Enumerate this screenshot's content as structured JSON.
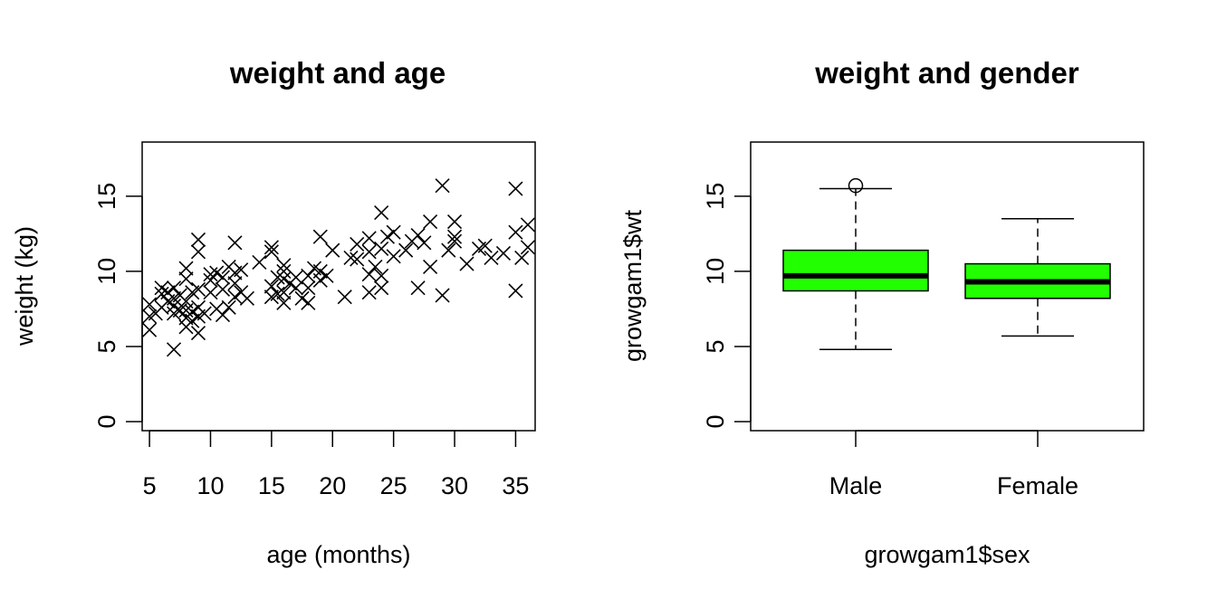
{
  "chart_data": [
    {
      "type": "scatter",
      "title": "weight and age",
      "xlabel": "age (months)",
      "ylabel": "weight (kg)",
      "xlim": [
        4.4,
        36.6
      ],
      "ylim": [
        -0.6,
        18.6
      ],
      "xticks": [
        "5",
        "10",
        "15",
        "20",
        "25",
        "30",
        "35"
      ],
      "yticks": [
        "0",
        "5",
        "10",
        "15"
      ],
      "marker": "x",
      "grid": false,
      "points": [
        [
          5,
          6.1
        ],
        [
          5,
          7.0
        ],
        [
          5,
          7.8
        ],
        [
          5.5,
          7.2
        ],
        [
          6,
          8.5
        ],
        [
          6,
          8.9
        ],
        [
          6,
          7.6
        ],
        [
          6.5,
          8.0
        ],
        [
          6.5,
          8.6
        ],
        [
          7,
          4.8
        ],
        [
          7,
          7.2
        ],
        [
          7,
          7.7
        ],
        [
          7,
          8.2
        ],
        [
          7,
          8.9
        ],
        [
          7.5,
          7.4
        ],
        [
          7.5,
          8.4
        ],
        [
          8,
          6.3
        ],
        [
          8,
          6.9
        ],
        [
          8,
          7.4
        ],
        [
          8,
          8.0
        ],
        [
          8,
          9.5
        ],
        [
          8,
          10.2
        ],
        [
          8.5,
          6.7
        ],
        [
          8.5,
          7.3
        ],
        [
          8.5,
          8.6
        ],
        [
          9,
          5.9
        ],
        [
          9,
          7.0
        ],
        [
          9,
          7.6
        ],
        [
          9,
          8.8
        ],
        [
          9,
          11.3
        ],
        [
          9,
          12.1
        ],
        [
          9.5,
          7.2
        ],
        [
          10,
          8.6
        ],
        [
          10,
          9.4
        ],
        [
          10,
          9.8
        ],
        [
          10.5,
          7.5
        ],
        [
          10.5,
          9.9
        ],
        [
          11,
          7.1
        ],
        [
          11,
          8.8
        ],
        [
          11,
          9.6
        ],
        [
          11.5,
          7.6
        ],
        [
          11.5,
          10.3
        ],
        [
          12,
          8.3
        ],
        [
          12,
          9.2
        ],
        [
          12,
          9.9
        ],
        [
          12,
          11.9
        ],
        [
          12.5,
          8.6
        ],
        [
          12.5,
          10.1
        ],
        [
          13,
          8.2
        ],
        [
          14,
          10.6
        ],
        [
          15,
          8.3
        ],
        [
          15,
          9.0
        ],
        [
          15,
          11.3
        ],
        [
          15,
          11.6
        ],
        [
          15.5,
          8.5
        ],
        [
          15.5,
          9.6
        ],
        [
          16,
          7.9
        ],
        [
          16,
          8.6
        ],
        [
          16,
          9.5
        ],
        [
          16,
          10.0
        ],
        [
          16,
          10.4
        ],
        [
          16.5,
          9.2
        ],
        [
          17,
          8.9
        ],
        [
          17,
          9.6
        ],
        [
          17.5,
          8.2
        ],
        [
          18,
          7.9
        ],
        [
          18,
          8.9
        ],
        [
          18,
          9.7
        ],
        [
          18.5,
          10.2
        ],
        [
          19,
          9.4
        ],
        [
          19,
          10.0
        ],
        [
          19,
          12.3
        ],
        [
          19.5,
          9.7
        ],
        [
          20,
          11.4
        ],
        [
          21,
          8.3
        ],
        [
          21.5,
          10.9
        ],
        [
          22,
          10.8
        ],
        [
          22,
          11.8
        ],
        [
          23,
          8.6
        ],
        [
          23,
          9.8
        ],
        [
          23,
          11.3
        ],
        [
          23,
          12.2
        ],
        [
          23.5,
          10.3
        ],
        [
          24,
          8.9
        ],
        [
          24,
          9.7
        ],
        [
          24,
          11.5
        ],
        [
          24,
          13.9
        ],
        [
          24.5,
          12.3
        ],
        [
          25,
          11.0
        ],
        [
          25,
          12.6
        ],
        [
          26,
          11.4
        ],
        [
          26.5,
          12.0
        ],
        [
          27,
          8.9
        ],
        [
          27,
          12.4
        ],
        [
          27.5,
          11.9
        ],
        [
          28,
          10.3
        ],
        [
          28,
          13.3
        ],
        [
          29,
          8.4
        ],
        [
          29,
          15.7
        ],
        [
          29.5,
          11.4
        ],
        [
          30,
          12.0
        ],
        [
          30,
          12.3
        ],
        [
          30,
          13.3
        ],
        [
          31,
          10.5
        ],
        [
          32,
          11.5
        ],
        [
          32.5,
          11.7
        ],
        [
          33,
          10.9
        ],
        [
          34,
          11.2
        ],
        [
          35,
          8.7
        ],
        [
          35,
          12.6
        ],
        [
          35,
          15.5
        ],
        [
          35.5,
          10.9
        ],
        [
          36,
          11.6
        ],
        [
          36,
          13.1
        ]
      ]
    },
    {
      "type": "box",
      "title": "weight and gender",
      "xlabel": "growgam1$sex",
      "ylabel": "growgam1$wt",
      "ylim": [
        -0.6,
        18.6
      ],
      "yticks": [
        "0",
        "5",
        "10",
        "15"
      ],
      "fill_color": "#22ff00",
      "categories": [
        "Male",
        "Female"
      ],
      "boxes": [
        {
          "name": "Male",
          "whisker_low": 4.8,
          "q1": 8.7,
          "median": 9.7,
          "q3": 11.4,
          "whisker_high": 15.5,
          "outliers": [
            15.7
          ]
        },
        {
          "name": "Female",
          "whisker_low": 5.7,
          "q1": 8.2,
          "median": 9.3,
          "q3": 10.5,
          "whisker_high": 13.5,
          "outliers": []
        }
      ]
    }
  ]
}
